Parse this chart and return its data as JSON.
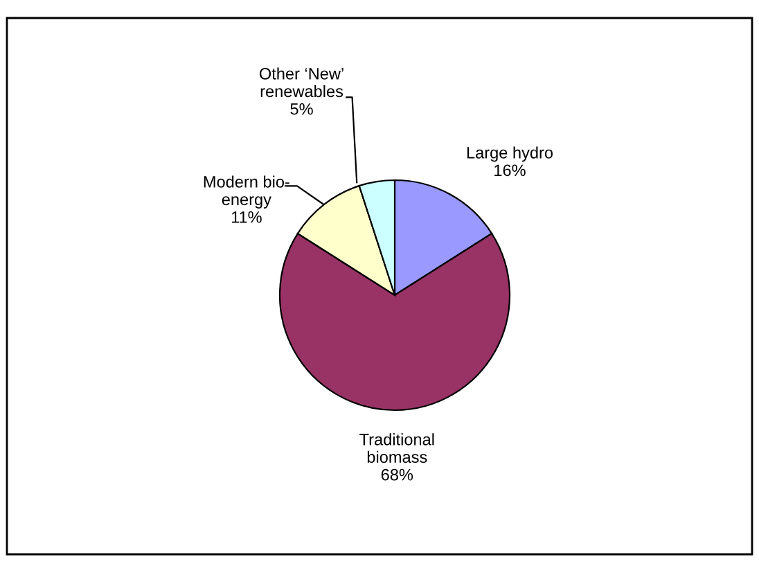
{
  "chart_data": {
    "type": "pie",
    "categories": [
      "Large hydro",
      "Traditional\nbiomass",
      "Modern bio-\nenergy",
      "Other ‘New’\nrenewables"
    ],
    "values": [
      16,
      68,
      11,
      5
    ],
    "colors": [
      "#9999ff",
      "#993366",
      "#ffffcc",
      "#ccffff"
    ],
    "value_labels": [
      "16%",
      "68%",
      "11%",
      "5%"
    ]
  }
}
